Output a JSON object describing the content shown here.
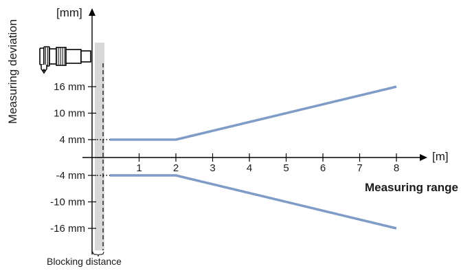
{
  "chart_data": {
    "type": "line",
    "y_unit_label": "[mm]",
    "x_unit_label": "[m]",
    "ylabel": "Measuring deviation",
    "xlabel": "Measuring range",
    "x_ticks": [
      "1",
      "2",
      "3",
      "4",
      "5",
      "6",
      "7",
      "8"
    ],
    "y_ticks": [
      "16 mm",
      "10 mm",
      "4 mm",
      "-4 mm",
      "-10 mm",
      "-16 mm"
    ],
    "y_tick_values": [
      16,
      10,
      4,
      -4,
      -10,
      -16
    ],
    "xlim": [
      0,
      8
    ],
    "ylim": [
      -16,
      16
    ],
    "series": [
      {
        "x": [
          0,
          2,
          8
        ],
        "y": [
          4,
          4,
          16
        ]
      },
      {
        "x": [
          0,
          2,
          8
        ],
        "y": [
          -4,
          -4,
          -16
        ]
      }
    ],
    "blocking_distance": {
      "label": "Blocking distance",
      "x_range": [
        0,
        0.2
      ]
    },
    "grid": false,
    "colors": {
      "series": "#7f9cc6",
      "blocking_zone": "#d8d8d8",
      "axis": "#000000"
    },
    "icons": [
      "sensor-icon"
    ]
  }
}
